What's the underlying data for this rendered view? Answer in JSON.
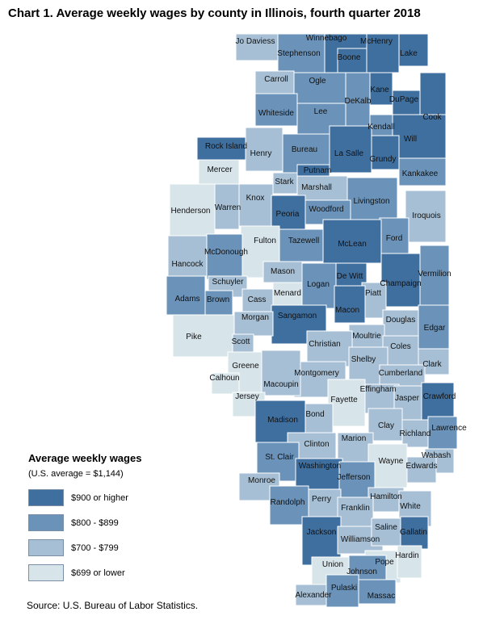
{
  "title": "Chart 1. Average weekly wages by county in Illinois, fourth quarter 2018",
  "legend": {
    "title": "Average weekly wages",
    "subtitle": "(U.S. average = $1,144)",
    "items": [
      {
        "label": "$900 or higher",
        "color": "#3f6f9f"
      },
      {
        "label": "$800 - $899",
        "color": "#6b93b9"
      },
      {
        "label": "$700 - $799",
        "color": "#a6bfd4"
      },
      {
        "label": "$699 or lower",
        "color": "#d7e4ea"
      }
    ]
  },
  "source": "Source: U.S. Bureau of Labor Statistics.",
  "counties": [
    {
      "name": "Jo Daviess",
      "class": "$700 - $799"
    },
    {
      "name": "Stephenson",
      "class": "$800 - $899"
    },
    {
      "name": "Winnebago",
      "class": "$900 or higher"
    },
    {
      "name": "Boone",
      "class": "$900 or higher"
    },
    {
      "name": "McHenry",
      "class": "$900 or higher"
    },
    {
      "name": "Lake",
      "class": "$900 or higher"
    },
    {
      "name": "Carroll",
      "class": "$700 - $799"
    },
    {
      "name": "Ogle",
      "class": "$800 - $899"
    },
    {
      "name": "DeKalb",
      "class": "$800 - $899"
    },
    {
      "name": "Kane",
      "class": "$900 or higher"
    },
    {
      "name": "DuPage",
      "class": "$900 or higher"
    },
    {
      "name": "Cook",
      "class": "$900 or higher"
    },
    {
      "name": "Whiteside",
      "class": "$800 - $899"
    },
    {
      "name": "Lee",
      "class": "$800 - $899"
    },
    {
      "name": "Kendall",
      "class": "$800 - $899"
    },
    {
      "name": "Will",
      "class": "$900 or higher"
    },
    {
      "name": "Rock Island",
      "class": "$900 or higher"
    },
    {
      "name": "Henry",
      "class": "$700 - $799"
    },
    {
      "name": "Bureau",
      "class": "$800 - $899"
    },
    {
      "name": "La Salle",
      "class": "$900 or higher"
    },
    {
      "name": "Grundy",
      "class": "$900 or higher"
    },
    {
      "name": "Kankakee",
      "class": "$800 - $899"
    },
    {
      "name": "Mercer",
      "class": "$699 or lower"
    },
    {
      "name": "Stark",
      "class": "$700 - $799"
    },
    {
      "name": "Putnam",
      "class": "$900 or higher"
    },
    {
      "name": "Marshall",
      "class": "$700 - $799"
    },
    {
      "name": "Livingston",
      "class": "$800 - $899"
    },
    {
      "name": "Iroquois",
      "class": "$700 - $799"
    },
    {
      "name": "Henderson",
      "class": "$699 or lower"
    },
    {
      "name": "Warren",
      "class": "$700 - $799"
    },
    {
      "name": "Knox",
      "class": "$700 - $799"
    },
    {
      "name": "Peoria",
      "class": "$900 or higher"
    },
    {
      "name": "Woodford",
      "class": "$800 - $899"
    },
    {
      "name": "Ford",
      "class": "$800 - $899"
    },
    {
      "name": "Fulton",
      "class": "$699 or lower"
    },
    {
      "name": "Tazewell",
      "class": "$800 - $899"
    },
    {
      "name": "McLean",
      "class": "$900 or higher"
    },
    {
      "name": "Hancock",
      "class": "$700 - $799"
    },
    {
      "name": "McDonough",
      "class": "$800 - $899"
    },
    {
      "name": "Mason",
      "class": "$700 - $799"
    },
    {
      "name": "Schuyler",
      "class": "$700 - $799"
    },
    {
      "name": "Logan",
      "class": "$800 - $899"
    },
    {
      "name": "De Witt",
      "class": "$900 or higher"
    },
    {
      "name": "Champaign",
      "class": "$900 or higher"
    },
    {
      "name": "Vermilion",
      "class": "$800 - $899"
    },
    {
      "name": "Adams",
      "class": "$800 - $899"
    },
    {
      "name": "Brown",
      "class": "$800 - $899"
    },
    {
      "name": "Cass",
      "class": "$700 - $799"
    },
    {
      "name": "Menard",
      "class": "$699 or lower"
    },
    {
      "name": "Piatt",
      "class": "$700 - $799"
    },
    {
      "name": "Macon",
      "class": "$900 or higher"
    },
    {
      "name": "Sangamon",
      "class": "$900 or higher"
    },
    {
      "name": "Morgan",
      "class": "$700 - $799"
    },
    {
      "name": "Douglas",
      "class": "$700 - $799"
    },
    {
      "name": "Pike",
      "class": "$699 or lower"
    },
    {
      "name": "Scott",
      "class": "$700 - $799"
    },
    {
      "name": "Moultrie",
      "class": "$700 - $799"
    },
    {
      "name": "Edgar",
      "class": "$800 - $899"
    },
    {
      "name": "Christian",
      "class": "$700 - $799"
    },
    {
      "name": "Coles",
      "class": "$700 - $799"
    },
    {
      "name": "Shelby",
      "class": "$700 - $799"
    },
    {
      "name": "Clark",
      "class": "$700 - $799"
    },
    {
      "name": "Greene",
      "class": "$699 or lower"
    },
    {
      "name": "Calhoun",
      "class": "$699 or lower"
    },
    {
      "name": "Montgomery",
      "class": "$700 - $799"
    },
    {
      "name": "Cumberland",
      "class": "$700 - $799"
    },
    {
      "name": "Macoupin",
      "class": "$700 - $799"
    },
    {
      "name": "Effingham",
      "class": "$700 - $799"
    },
    {
      "name": "Jersey",
      "class": "$699 or lower"
    },
    {
      "name": "Fayette",
      "class": "$699 or lower"
    },
    {
      "name": "Jasper",
      "class": "$700 - $799"
    },
    {
      "name": "Crawford",
      "class": "$900 or higher"
    },
    {
      "name": "Madison",
      "class": "$900 or higher"
    },
    {
      "name": "Bond",
      "class": "$700 - $799"
    },
    {
      "name": "Clay",
      "class": "$700 - $799"
    },
    {
      "name": "Richland",
      "class": "$700 - $799"
    },
    {
      "name": "Lawrence",
      "class": "$800 - $899"
    },
    {
      "name": "Clinton",
      "class": "$700 - $799"
    },
    {
      "name": "Marion",
      "class": "$700 - $799"
    },
    {
      "name": "St. Clair",
      "class": "$800 - $899"
    },
    {
      "name": "Wayne",
      "class": "$699 or lower"
    },
    {
      "name": "Wabash",
      "class": "$700 - $799"
    },
    {
      "name": "Edwards",
      "class": "$700 - $799"
    },
    {
      "name": "Washington",
      "class": "$900 or higher"
    },
    {
      "name": "Jefferson",
      "class": "$800 - $899"
    },
    {
      "name": "Monroe",
      "class": "$700 - $799"
    },
    {
      "name": "Randolph",
      "class": "$800 - $899"
    },
    {
      "name": "Perry",
      "class": "$700 - $799"
    },
    {
      "name": "Hamilton",
      "class": "$700 - $799"
    },
    {
      "name": "Franklin",
      "class": "$700 - $799"
    },
    {
      "name": "White",
      "class": "$700 - $799"
    },
    {
      "name": "Jackson",
      "class": "$900 or higher"
    },
    {
      "name": "Williamson",
      "class": "$700 - $799"
    },
    {
      "name": "Saline",
      "class": "$700 - $799"
    },
    {
      "name": "Gallatin",
      "class": "$900 or higher"
    },
    {
      "name": "Union",
      "class": "$699 or lower"
    },
    {
      "name": "Pope",
      "class": "$699 or lower"
    },
    {
      "name": "Hardin",
      "class": "$699 or lower"
    },
    {
      "name": "Johnson",
      "class": "$800 - $899"
    },
    {
      "name": "Alexander",
      "class": "$700 - $799"
    },
    {
      "name": "Pulaski",
      "class": "$800 - $899"
    },
    {
      "name": "Massac",
      "class": "$800 - $899"
    }
  ]
}
